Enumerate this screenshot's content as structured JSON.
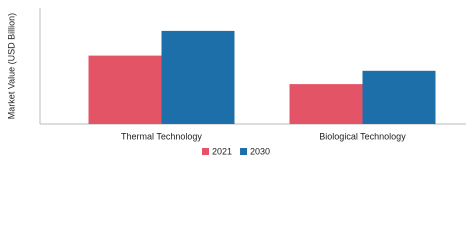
{
  "chart_data": {
    "type": "bar",
    "y_label": "Market Value (USD Billion)",
    "categories": [
      "Thermal Technology",
      "Biological Technology"
    ],
    "series": [
      {
        "name": "2021",
        "color": "#e35467",
        "values": [
          7.2,
          4.2
        ]
      },
      {
        "name": "2030",
        "color": "#1d6fa9",
        "values": [
          9.8,
          5.6
        ]
      }
    ],
    "ylim": [
      0,
      12
    ]
  }
}
